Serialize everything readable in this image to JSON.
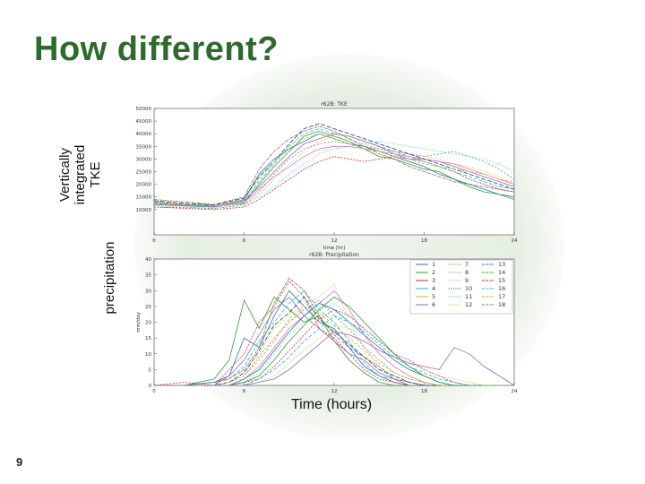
{
  "slide": {
    "title": "How different?",
    "page_number": "9",
    "tke_side_label": "Vertically integrated TKE",
    "precip_side_label": "precipitation",
    "x_axis_caption": "Time (hours)"
  },
  "colors": {
    "title": "#2e6b2a",
    "series": [
      "#1f77b4",
      "#2ca02c",
      "#d62728",
      "#17becf",
      "#bcbd22",
      "#9467bd",
      "#8c564b",
      "#7f7f7f",
      "#e377c2",
      "#1f3b73",
      "#17becf",
      "#bcbd22"
    ]
  },
  "chart_data": [
    {
      "type": "line",
      "title": "r62B: TKE",
      "xlabel": "time [hr]",
      "ylabel": "",
      "xlim": [
        0,
        24
      ],
      "ylim": [
        0,
        50000
      ],
      "xticks": [
        0,
        6,
        12,
        18,
        24
      ],
      "yticks": [
        "10000",
        "15000",
        "20000",
        "25000",
        "30000",
        "35000",
        "40000",
        "45000",
        "50000"
      ],
      "x": [
        0,
        2,
        4,
        6,
        7,
        8,
        9,
        10,
        11,
        12,
        13,
        14,
        15,
        16,
        17,
        18,
        19,
        20,
        21,
        22,
        23,
        24
      ],
      "series": [
        {
          "values": [
            12000,
            11500,
            11000,
            14000,
            24000,
            30000,
            34000,
            37000,
            40000,
            38000,
            36000,
            35000,
            33000,
            31000,
            29000,
            27000,
            24000,
            22000,
            20000,
            18000,
            16000,
            15000
          ]
        },
        {
          "values": [
            13000,
            12000,
            11500,
            12500,
            20000,
            27000,
            33000,
            39000,
            41000,
            39000,
            37000,
            34000,
            31000,
            30000,
            28000,
            26000,
            25000,
            22000,
            19000,
            17000,
            16000,
            14000
          ]
        },
        {
          "values": [
            11000,
            10500,
            10000,
            11000,
            14000,
            18000,
            22000,
            26000,
            29000,
            31000,
            30000,
            29000,
            30000,
            31000,
            30000,
            29000,
            27000,
            25000,
            22000,
            20000,
            18000,
            17000
          ]
        },
        {
          "values": [
            12500,
            12000,
            11000,
            13000,
            21000,
            28000,
            35000,
            40000,
            42000,
            40000,
            39000,
            37000,
            35000,
            33000,
            31000,
            29000,
            27000,
            25000,
            23000,
            21000,
            19000,
            18000
          ]
        },
        {
          "values": [
            11500,
            11000,
            10500,
            11500,
            16000,
            22000,
            28000,
            33000,
            37000,
            39000,
            38000,
            36000,
            34000,
            33000,
            32000,
            31000,
            30000,
            28000,
            27000,
            25000,
            23000,
            20000
          ]
        },
        {
          "values": [
            12000,
            11800,
            11200,
            13500,
            19000,
            25000,
            31000,
            36000,
            38000,
            40000,
            39000,
            37000,
            35000,
            32000,
            30000,
            30000,
            29000,
            27000,
            25000,
            23000,
            21000,
            19000
          ]
        },
        {
          "values": [
            14000,
            13000,
            12000,
            15000,
            26000,
            33000,
            38000,
            41000,
            43000,
            41000,
            38000,
            35000,
            32000,
            30000,
            27000,
            25000,
            23000,
            21000,
            20000,
            19000,
            18000,
            17000
          ]
        },
        {
          "values": [
            11000,
            10800,
            10400,
            12000,
            17000,
            24000,
            30000,
            34000,
            36000,
            37000,
            36000,
            35000,
            34000,
            33000,
            32000,
            31000,
            32000,
            33000,
            31000,
            29000,
            26000,
            22000
          ]
        },
        {
          "values": [
            12200,
            11600,
            11300,
            12800,
            18000,
            23000,
            27000,
            31000,
            34000,
            35000,
            35000,
            34000,
            33000,
            32000,
            31000,
            30000,
            29000,
            28000,
            26000,
            24000,
            22000,
            20000
          ]
        },
        {
          "values": [
            13500,
            12500,
            11800,
            14500,
            23000,
            29000,
            36000,
            42000,
            44000,
            42000,
            40000,
            38000,
            36000,
            34000,
            32000,
            30000,
            28000,
            26000,
            24000,
            22000,
            20000,
            18000
          ]
        },
        {
          "values": [
            11800,
            11400,
            10900,
            12200,
            15000,
            19000,
            24000,
            28000,
            32000,
            34000,
            35000,
            36000,
            37000,
            36000,
            35000,
            34000,
            33000,
            32000,
            31000,
            30000,
            28000,
            25000
          ]
        },
        {
          "values": [
            12700,
            12100,
            11600,
            13800,
            22000,
            29000,
            34000,
            38000,
            40000,
            38000,
            36000,
            34000,
            33000,
            31000,
            30000,
            28000,
            27000,
            26000,
            25000,
            24000,
            22000,
            21000
          ]
        }
      ]
    },
    {
      "type": "line",
      "title": "r62B: Precipitation",
      "xlabel": "",
      "ylabel": "mm/day",
      "xlim": [
        0,
        24
      ],
      "ylim": [
        0,
        40
      ],
      "xticks": [
        0,
        6,
        12,
        18,
        24
      ],
      "yticks": [
        0,
        5,
        10,
        15,
        20,
        25,
        30,
        35,
        40
      ],
      "legend_labels": [
        "1",
        "2",
        "3",
        "4",
        "5",
        "6",
        "7",
        "8",
        "9",
        "10",
        "11",
        "12",
        "13",
        "14",
        "15",
        "16",
        "17",
        "18"
      ],
      "legend_position": "top-right",
      "x": [
        0,
        2,
        4,
        5,
        6,
        7,
        8,
        9,
        10,
        11,
        12,
        13,
        14,
        15,
        16,
        17,
        18,
        19,
        20,
        21,
        22,
        23,
        24
      ],
      "series": [
        {
          "values": [
            0,
            0,
            1,
            3,
            15,
            12,
            22,
            30,
            25,
            20,
            18,
            12,
            6,
            3,
            1,
            0,
            0,
            0,
            0,
            0,
            0,
            0,
            0
          ]
        },
        {
          "values": [
            0,
            0,
            2,
            8,
            27,
            18,
            28,
            24,
            20,
            22,
            14,
            8,
            4,
            1,
            0,
            0,
            0,
            0,
            0,
            0,
            0,
            0,
            0
          ]
        },
        {
          "values": [
            0,
            1,
            0,
            5,
            10,
            20,
            25,
            33,
            28,
            18,
            15,
            10,
            5,
            2,
            1,
            0,
            0,
            0,
            0,
            0,
            0,
            0,
            0
          ]
        },
        {
          "values": [
            0,
            0,
            1,
            2,
            6,
            14,
            20,
            26,
            30,
            24,
            20,
            14,
            7,
            3,
            2,
            1,
            0,
            0,
            0,
            0,
            0,
            0,
            0
          ]
        },
        {
          "values": [
            0,
            0,
            0,
            1,
            4,
            10,
            18,
            22,
            26,
            28,
            32,
            20,
            12,
            6,
            3,
            1,
            0,
            0,
            0,
            0,
            0,
            0,
            0
          ]
        },
        {
          "values": [
            0,
            0,
            0,
            3,
            8,
            16,
            24,
            28,
            22,
            18,
            14,
            10,
            8,
            4,
            2,
            0,
            0,
            0,
            0,
            0,
            0,
            0,
            0
          ]
        },
        {
          "values": [
            0,
            0,
            1,
            2,
            5,
            12,
            26,
            34,
            30,
            22,
            16,
            12,
            9,
            6,
            2,
            1,
            0,
            0,
            0,
            0,
            0,
            0,
            0
          ]
        },
        {
          "values": [
            0,
            0,
            0,
            1,
            3,
            9,
            15,
            20,
            24,
            27,
            22,
            18,
            12,
            8,
            4,
            2,
            1,
            0,
            0,
            0,
            0,
            0,
            0
          ]
        },
        {
          "values": [
            0,
            0,
            0,
            0,
            2,
            6,
            12,
            18,
            22,
            26,
            30,
            24,
            16,
            10,
            6,
            3,
            1,
            0,
            0,
            0,
            0,
            0,
            0
          ]
        },
        {
          "values": [
            0,
            0,
            0,
            1,
            4,
            11,
            19,
            23,
            28,
            21,
            17,
            13,
            9,
            5,
            3,
            1,
            0,
            0,
            0,
            0,
            0,
            0,
            0
          ]
        },
        {
          "values": [
            0,
            0,
            0,
            0,
            1,
            4,
            10,
            16,
            20,
            24,
            26,
            22,
            18,
            14,
            10,
            6,
            3,
            1,
            0,
            0,
            0,
            0,
            0
          ]
        },
        {
          "values": [
            0,
            0,
            0,
            1,
            3,
            8,
            14,
            21,
            25,
            23,
            19,
            15,
            11,
            7,
            4,
            2,
            1,
            0,
            0,
            0,
            0,
            0,
            0
          ]
        },
        {
          "values": [
            0,
            0,
            0,
            0,
            2,
            5,
            11,
            17,
            22,
            26,
            24,
            20,
            16,
            12,
            8,
            5,
            3,
            1,
            0,
            0,
            0,
            0,
            0
          ]
        },
        {
          "values": [
            0,
            0,
            0,
            0,
            1,
            3,
            8,
            14,
            19,
            24,
            28,
            25,
            20,
            15,
            10,
            6,
            3,
            1,
            0,
            0,
            0,
            0,
            0
          ]
        },
        {
          "values": [
            0,
            0,
            0,
            0,
            1,
            2,
            6,
            11,
            16,
            21,
            24,
            22,
            18,
            14,
            10,
            8,
            5,
            3,
            1,
            0,
            0,
            0,
            0
          ]
        },
        {
          "values": [
            0,
            0,
            0,
            0,
            0,
            2,
            5,
            9,
            14,
            18,
            22,
            20,
            17,
            13,
            9,
            6,
            4,
            2,
            1,
            0,
            0,
            0,
            0
          ]
        },
        {
          "values": [
            0,
            0,
            0,
            0,
            0,
            1,
            3,
            7,
            11,
            15,
            19,
            18,
            16,
            12,
            9,
            7,
            5,
            3,
            2,
            1,
            0,
            0,
            0
          ]
        },
        {
          "values": [
            0,
            0,
            0,
            0,
            0,
            1,
            2,
            5,
            9,
            13,
            17,
            16,
            14,
            11,
            9,
            7,
            6,
            5,
            12,
            10,
            6,
            3,
            0
          ]
        }
      ]
    }
  ]
}
